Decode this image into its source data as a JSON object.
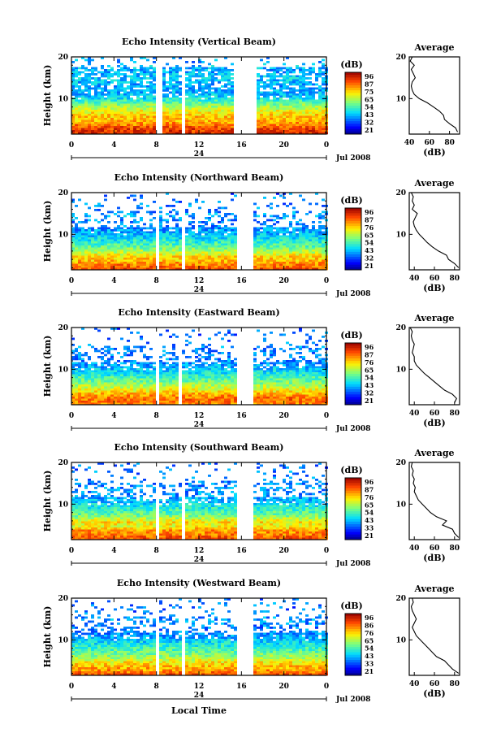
{
  "figure": {
    "xlabel": "Local Time",
    "date_label": "Jul 2008",
    "day_label": "24",
    "avg_title": "Average",
    "avg_xlabel": "(dB)",
    "ylabel": "Height (km)",
    "cbar_unit": "(dB)"
  },
  "chart_data": [
    {
      "type": "heatmap",
      "title": "Echo Intensity (Vertical Beam)",
      "xlabel": "Local Time",
      "ylabel": "Height (km)",
      "xlim": [
        0,
        24
      ],
      "ylim": [
        1.5,
        20
      ],
      "xticks": [
        "0",
        "4",
        "8",
        "12",
        "16",
        "20",
        "0"
      ],
      "yticks": [
        10,
        20
      ],
      "gaps_hours": [
        [
          7.9,
          8.3
        ],
        [
          10.1,
          10.4
        ],
        [
          15.1,
          17.2
        ]
      ],
      "colorbar": {
        "unit": "(dB)",
        "ticks": [
          "96",
          "87",
          "75",
          "65",
          "54",
          "43",
          "32",
          "21"
        ]
      },
      "average": {
        "xticks": [
          40,
          60,
          80
        ],
        "xlim": [
          40,
          90
        ],
        "height_km": [
          2,
          3,
          4,
          5,
          6,
          7,
          8,
          9,
          10,
          11,
          12,
          13,
          14,
          15,
          16,
          17,
          18,
          19,
          20
        ],
        "db": [
          88,
          86,
          80,
          75,
          74,
          70,
          64,
          58,
          50,
          45,
          43,
          42,
          43,
          46,
          44,
          42,
          45,
          41,
          43
        ]
      }
    },
    {
      "type": "heatmap",
      "title": "Echo Intensity (Northward Beam)",
      "xlabel": "Local Time",
      "ylabel": "Height (km)",
      "xlim": [
        0,
        24
      ],
      "ylim": [
        1.5,
        20
      ],
      "xticks": [
        "0",
        "4",
        "8",
        "12",
        "16",
        "20",
        "0"
      ],
      "yticks": [
        10,
        20
      ],
      "gaps_hours": [
        [
          7.9,
          8.2
        ],
        [
          10.1,
          10.4
        ],
        [
          15.3,
          17.1
        ]
      ],
      "colorbar": {
        "unit": "(dB)",
        "ticks": [
          "96",
          "87",
          "76",
          "65",
          "54",
          "43",
          "32",
          "21"
        ]
      },
      "average": {
        "xticks": [
          40,
          60,
          80
        ],
        "xlim": [
          35,
          85
        ],
        "height_km": [
          2,
          3,
          4,
          5,
          6,
          7,
          8,
          9,
          10,
          11,
          12,
          13,
          14,
          15,
          16,
          17,
          18,
          19,
          20
        ],
        "db": [
          84,
          80,
          74,
          72,
          64,
          58,
          53,
          49,
          45,
          42,
          40,
          39,
          41,
          43,
          38,
          40,
          38,
          39,
          37
        ]
      }
    },
    {
      "type": "heatmap",
      "title": "Echo Intensity (Eastward Beam)",
      "xlabel": "Local Time",
      "ylabel": "Height (km)",
      "xlim": [
        0,
        24
      ],
      "ylim": [
        1.5,
        20
      ],
      "xticks": [
        "0",
        "4",
        "8",
        "12",
        "16",
        "20",
        "0"
      ],
      "yticks": [
        10,
        20
      ],
      "gaps_hours": [
        [
          7.9,
          8.2
        ],
        [
          9.9,
          10.2
        ],
        [
          15.3,
          17.1
        ]
      ],
      "colorbar": {
        "unit": "(dB)",
        "ticks": [
          "96",
          "87",
          "76",
          "65",
          "54",
          "43",
          "32",
          "21"
        ]
      },
      "average": {
        "xticks": [
          40,
          60,
          80
        ],
        "xlim": [
          35,
          85
        ],
        "height_km": [
          2,
          3,
          4,
          5,
          6,
          7,
          8,
          9,
          10,
          11,
          12,
          13,
          14,
          15,
          16,
          17,
          18,
          19,
          20
        ],
        "db": [
          80,
          82,
          78,
          70,
          65,
          60,
          55,
          50,
          46,
          42,
          40,
          40,
          38,
          39,
          40,
          38,
          37,
          38,
          36
        ]
      }
    },
    {
      "type": "heatmap",
      "title": "Echo Intensity (Southward Beam)",
      "xlabel": "Local Time",
      "ylabel": "Height (km)",
      "xlim": [
        0,
        24
      ],
      "ylim": [
        1.5,
        20
      ],
      "xticks": [
        "0",
        "4",
        "8",
        "12",
        "16",
        "20",
        "0"
      ],
      "yticks": [
        10,
        20
      ],
      "gaps_hours": [
        [
          7.9,
          8.2
        ],
        [
          10.1,
          10.4
        ],
        [
          15.3,
          17.1
        ]
      ],
      "colorbar": {
        "unit": "(dB)",
        "ticks": [
          "96",
          "87",
          "76",
          "65",
          "54",
          "43",
          "33",
          "21"
        ]
      },
      "average": {
        "xticks": [
          40,
          60,
          80
        ],
        "xlim": [
          35,
          85
        ],
        "height_km": [
          2,
          3,
          4,
          5,
          6,
          7,
          8,
          9,
          10,
          11,
          12,
          13,
          14,
          15,
          16,
          17,
          18,
          19,
          20
        ],
        "db": [
          84,
          80,
          78,
          68,
          72,
          62,
          56,
          52,
          48,
          44,
          42,
          40,
          41,
          39,
          40,
          38,
          39,
          37,
          38
        ]
      }
    },
    {
      "type": "heatmap",
      "title": "Echo Intensity (Westward Beam)",
      "xlabel": "Local Time",
      "ylabel": "Height (km)",
      "xlim": [
        0,
        24
      ],
      "ylim": [
        1.5,
        20
      ],
      "xticks": [
        "0",
        "4",
        "8",
        "12",
        "16",
        "20",
        "0"
      ],
      "yticks": [
        10,
        20
      ],
      "gaps_hours": [
        [
          7.9,
          8.2
        ],
        [
          10.1,
          10.4
        ],
        [
          15.3,
          17.1
        ]
      ],
      "colorbar": {
        "unit": "(dB)",
        "ticks": [
          "96",
          "86",
          "76",
          "65",
          "54",
          "43",
          "33",
          "21"
        ]
      },
      "average": {
        "xticks": [
          40,
          60,
          80
        ],
        "xlim": [
          35,
          85
        ],
        "height_km": [
          2,
          3,
          4,
          5,
          6,
          7,
          8,
          9,
          10,
          11,
          12,
          13,
          14,
          15,
          16,
          17,
          18,
          19,
          20
        ],
        "db": [
          84,
          78,
          74,
          70,
          62,
          58,
          54,
          50,
          46,
          42,
          40,
          38,
          40,
          42,
          40,
          38,
          37,
          39,
          38
        ]
      }
    }
  ]
}
